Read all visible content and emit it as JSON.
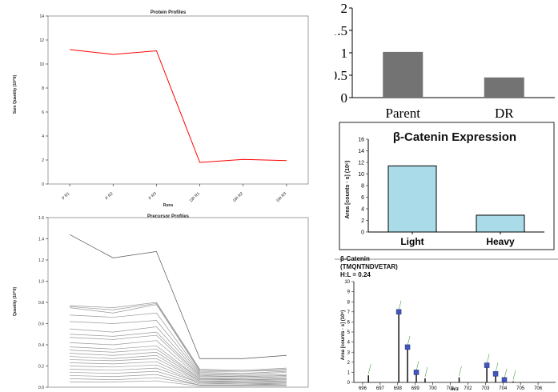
{
  "chart_data": [
    {
      "id": "protein",
      "type": "line",
      "title": "Protein Profiles",
      "xlabel": "Runs",
      "ylabel": "Sum Quantity (10^6)",
      "categories": [
        "P R1",
        "P R2",
        "P R3",
        "DR R1",
        "DR R2",
        "DR R3"
      ],
      "series": [
        {
          "values": [
            11.2,
            10.8,
            11.1,
            1.8,
            2.05,
            1.95
          ],
          "color": "#ff0000"
        }
      ],
      "ylim": [
        0,
        14
      ],
      "yticks": [
        "0",
        "2",
        "4",
        "6",
        "8",
        "10",
        "12",
        "14"
      ],
      "grid": false
    },
    {
      "id": "precursor",
      "type": "line",
      "title": "Precursor Profiles",
      "ylabel": "Quantity (10^6)",
      "ylim": [
        0,
        1.6
      ],
      "yticks": [
        "0.0",
        "0.2",
        "0.4",
        "0.6",
        "0.8",
        "1.0",
        "1.2",
        "1.4",
        "1.6"
      ],
      "series": [
        {
          "values": [
            1.44,
            1.22,
            1.28,
            0.27,
            0.27,
            0.3
          ]
        },
        {
          "values": [
            0.77,
            0.75,
            0.8,
            0.17,
            0.16,
            0.18
          ]
        },
        {
          "values": [
            0.76,
            0.73,
            0.79,
            0.16,
            0.15,
            0.17
          ]
        },
        {
          "values": [
            0.75,
            0.7,
            0.78,
            0.15,
            0.15,
            0.16
          ]
        },
        {
          "values": [
            0.68,
            0.66,
            0.7,
            0.14,
            0.13,
            0.15
          ]
        },
        {
          "values": [
            0.62,
            0.6,
            0.63,
            0.13,
            0.12,
            0.14
          ]
        },
        {
          "values": [
            0.55,
            0.52,
            0.57,
            0.12,
            0.11,
            0.12
          ]
        },
        {
          "values": [
            0.5,
            0.48,
            0.52,
            0.11,
            0.1,
            0.11
          ]
        },
        {
          "values": [
            0.47,
            0.45,
            0.49,
            0.1,
            0.1,
            0.11
          ]
        },
        {
          "values": [
            0.42,
            0.4,
            0.44,
            0.09,
            0.09,
            0.1
          ]
        },
        {
          "values": [
            0.38,
            0.36,
            0.39,
            0.08,
            0.08,
            0.09
          ]
        },
        {
          "values": [
            0.35,
            0.33,
            0.36,
            0.08,
            0.07,
            0.08
          ]
        },
        {
          "values": [
            0.32,
            0.3,
            0.33,
            0.07,
            0.07,
            0.07
          ]
        },
        {
          "values": [
            0.29,
            0.27,
            0.3,
            0.06,
            0.06,
            0.07
          ]
        },
        {
          "values": [
            0.26,
            0.25,
            0.27,
            0.06,
            0.05,
            0.06
          ]
        },
        {
          "values": [
            0.23,
            0.22,
            0.24,
            0.05,
            0.05,
            0.05
          ]
        },
        {
          "values": [
            0.2,
            0.19,
            0.21,
            0.04,
            0.04,
            0.05
          ]
        },
        {
          "values": [
            0.17,
            0.16,
            0.18,
            0.04,
            0.03,
            0.04
          ]
        },
        {
          "values": [
            0.14,
            0.13,
            0.15,
            0.03,
            0.03,
            0.03
          ]
        },
        {
          "values": [
            0.11,
            0.1,
            0.12,
            0.02,
            0.02,
            0.03
          ]
        },
        {
          "values": [
            0.08,
            0.07,
            0.09,
            0.02,
            0.02,
            0.02
          ]
        },
        {
          "values": [
            0.05,
            0.05,
            0.06,
            0.01,
            0.01,
            0.01
          ]
        }
      ],
      "color": "#999999",
      "highlight_color": "#555555",
      "grid": false
    },
    {
      "id": "parent-dr",
      "type": "bar",
      "categories": [
        "Parent",
        "DR"
      ],
      "values": [
        1.02,
        0.45
      ],
      "ylim": [
        0,
        2
      ],
      "yticks": [
        "0",
        "0.5",
        "1",
        "1.5",
        "2"
      ],
      "color": "#737373"
    },
    {
      "id": "catenin-expression",
      "type": "bar",
      "title": "β-Catenin Expression",
      "ylabel": "Area [counts · s] (10⁶)",
      "categories": [
        "Light",
        "Heavy"
      ],
      "values": [
        11.4,
        2.9
      ],
      "ylim": [
        0,
        16
      ],
      "yticks": [
        "0",
        "2",
        "4",
        "6",
        "8",
        "10",
        "12",
        "14",
        "16"
      ],
      "color": "#a9dbe8"
    },
    {
      "id": "spectrum",
      "type": "bar",
      "title_lines": [
        "β-Catenin",
        "(TMQNTNDVETAR)",
        "H:L = 0.24"
      ],
      "ylabel": "Area [counts · s] (10⁶)",
      "xlabel": "m/z",
      "xlim": [
        695.5,
        707
      ],
      "xticks": [
        "696",
        "697",
        "698",
        "699",
        "700",
        "701",
        "702",
        "703",
        "704",
        "705",
        "706"
      ],
      "ylim": [
        0,
        10
      ],
      "yticks": [
        "0",
        "1",
        "2",
        "3",
        "4",
        "5",
        "6",
        "7",
        "8",
        "9",
        "10"
      ],
      "peaks": [
        {
          "mz": 696.33,
          "value": 0.7
        },
        {
          "mz": 698.06,
          "value": 7.0,
          "marker": true
        },
        {
          "mz": 698.56,
          "value": 3.5,
          "marker": true
        },
        {
          "mz": 699.06,
          "value": 1.0,
          "marker": true
        },
        {
          "mz": 699.56,
          "value": 0.4
        },
        {
          "mz": 701.5,
          "value": 0.5
        },
        {
          "mz": 703.08,
          "value": 1.7,
          "marker": true
        },
        {
          "mz": 703.58,
          "value": 0.85,
          "marker": true
        },
        {
          "mz": 704.08,
          "value": 0.25,
          "marker": true
        },
        {
          "mz": 704.58,
          "value": 0.1
        }
      ],
      "bar_color": "#000000",
      "marker_color": "#4455bb",
      "annotation_color": "#228822"
    }
  ]
}
